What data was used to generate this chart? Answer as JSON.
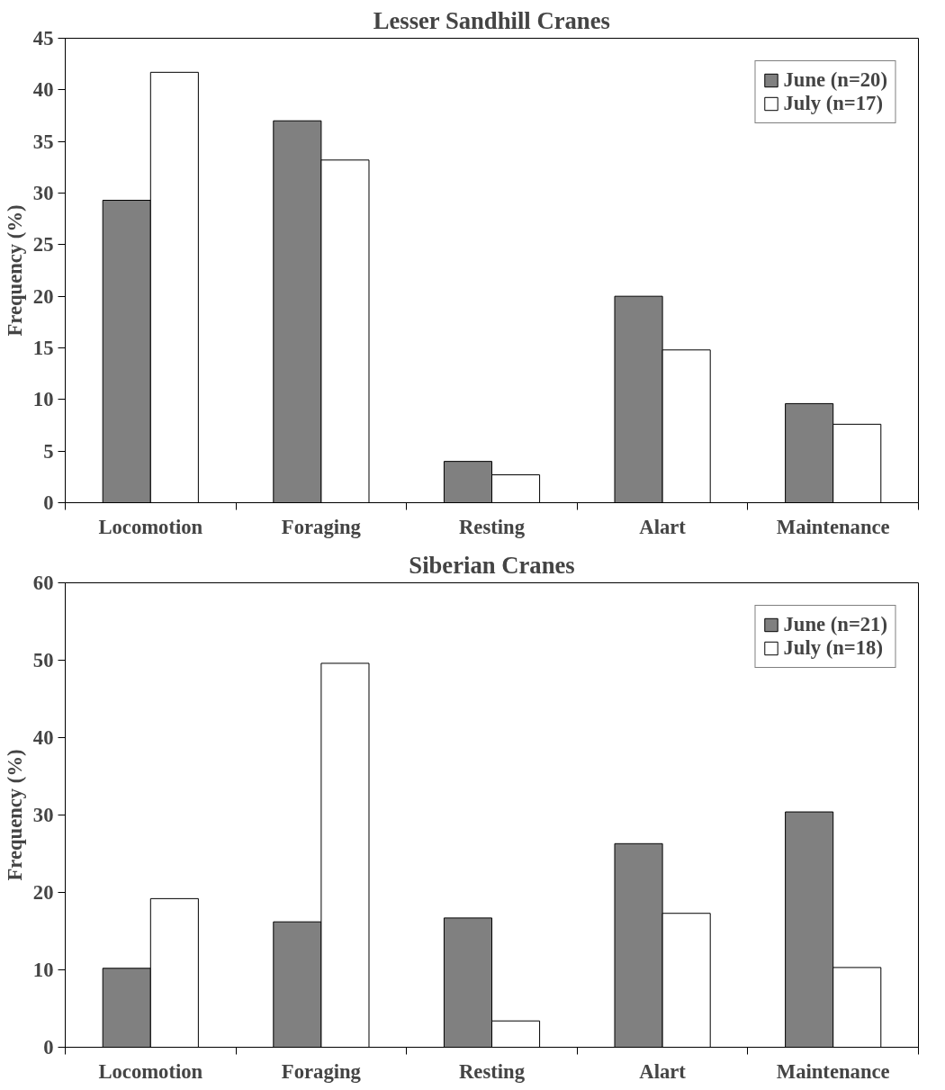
{
  "chart_data": [
    {
      "type": "bar",
      "title": "Lesser Sandhill Cranes",
      "ylabel": "Frequency (%)",
      "categories": [
        "Locomotion",
        "Foraging",
        "Resting",
        "Alart",
        "Maintenance"
      ],
      "series": [
        {
          "name": "June (n=20)",
          "color": "#808080",
          "values": [
            29.3,
            37.0,
            4.0,
            20.0,
            9.6
          ]
        },
        {
          "name": "July (n=17)",
          "color": "#ffffff",
          "values": [
            41.7,
            33.2,
            2.7,
            14.8,
            7.6
          ]
        }
      ],
      "ylim": [
        0,
        45
      ],
      "yticks": [
        0,
        5,
        10,
        15,
        20,
        25,
        30,
        35,
        40,
        45
      ],
      "legend": "top right"
    },
    {
      "type": "bar",
      "title": "Siberian Cranes",
      "ylabel": "Frequency (%)",
      "categories": [
        "Locomotion",
        "Foraging",
        "Resting",
        "Alart",
        "Maintenance"
      ],
      "series": [
        {
          "name": "June (n=21)",
          "color": "#808080",
          "values": [
            10.2,
            16.2,
            16.7,
            26.3,
            30.4
          ]
        },
        {
          "name": "July (n=18)",
          "color": "#ffffff",
          "values": [
            19.2,
            49.6,
            3.4,
            17.3,
            10.3
          ]
        }
      ],
      "ylim": [
        0,
        60
      ],
      "yticks": [
        0,
        10,
        20,
        30,
        40,
        50,
        60
      ],
      "legend": "top right"
    }
  ]
}
